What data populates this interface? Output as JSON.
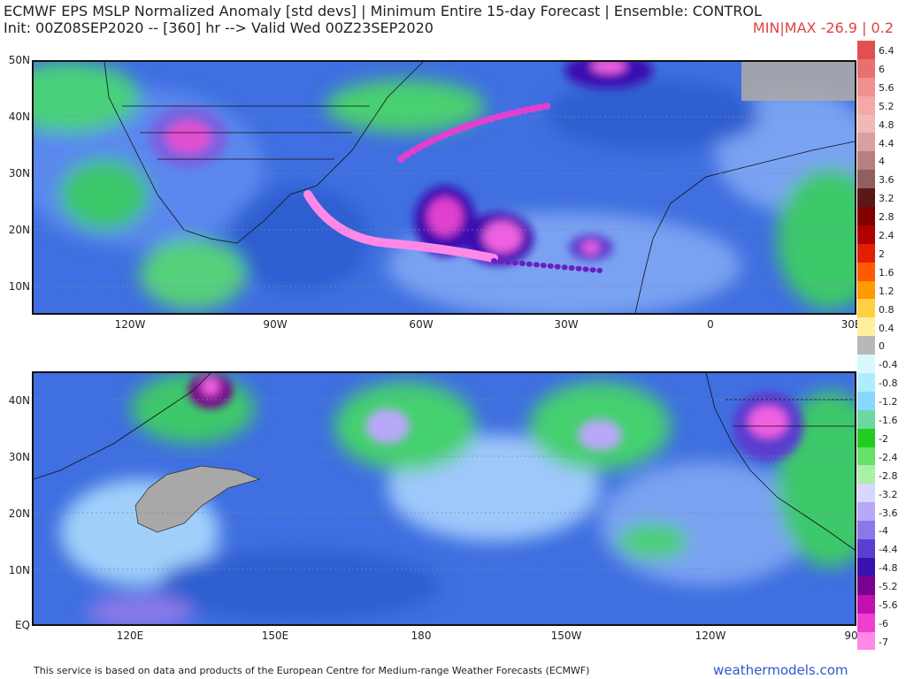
{
  "header": {
    "title_line1": "ECMWF EPS MSLP Normalized Anomaly [std devs] | Minimum Entire 15-day Forecast | Ensemble: CONTROL",
    "title_line2": "Init: 00Z08SEP2020 -- [360] hr --> Valid Wed 00Z23SEP2020",
    "minmax": "MIN|MAX -26.9 | 0.2",
    "minmax_color": "#e04040"
  },
  "maps": [
    {
      "region": "Atlantic",
      "lat_labels": [
        "50N",
        "40N",
        "30N",
        "20N",
        "10N"
      ],
      "lon_labels": [
        "120W",
        "90W",
        "60W",
        "30W",
        "0",
        "30E"
      ]
    },
    {
      "region": "Pacific",
      "lat_labels": [
        "40N",
        "30N",
        "20N",
        "10N",
        "EQ"
      ],
      "lon_labels": [
        "120E",
        "150E",
        "180",
        "150W",
        "120W",
        "90"
      ]
    }
  ],
  "colorbar": {
    "labels": [
      "6.4",
      "6",
      "5.6",
      "5.2",
      "4.8",
      "4.4",
      "4",
      "3.6",
      "3.2",
      "2.8",
      "2.4",
      "2",
      "1.6",
      "1.2",
      "0.8",
      "0.4",
      "0",
      "-0.4",
      "-0.8",
      "-1.2",
      "-1.6",
      "-2",
      "-2.4",
      "-2.8",
      "-3.2",
      "-3.6",
      "-4",
      "-4.4",
      "-4.8",
      "-5.2",
      "-5.6",
      "-6",
      "-7"
    ],
    "colors": [
      "#e05050",
      "#e87070",
      "#f09090",
      "#f4a8a8",
      "#f0b8b8",
      "#d8a0a0",
      "#b88080",
      "#906060",
      "#5a1818",
      "#800000",
      "#b00000",
      "#e02000",
      "#ff5a00",
      "#ff9a00",
      "#ffd040",
      "#fff0a0",
      "#b8b8b8",
      "#d8f8ff",
      "#b0ecff",
      "#88d8ff",
      "#6ad8a0",
      "#22cc22",
      "#66e066",
      "#a8f0a8",
      "#d8d8ff",
      "#b8a8f8",
      "#8a78e8",
      "#5a3ed0",
      "#3a10b0",
      "#7a0090",
      "#c010b0",
      "#f040d0",
      "#ff88e8"
    ]
  },
  "footer": {
    "attribution": "This service is based on data and products of the European Centre for Medium-range Weather Forecasts (ECMWF)",
    "brand": "weathermodels.com"
  }
}
